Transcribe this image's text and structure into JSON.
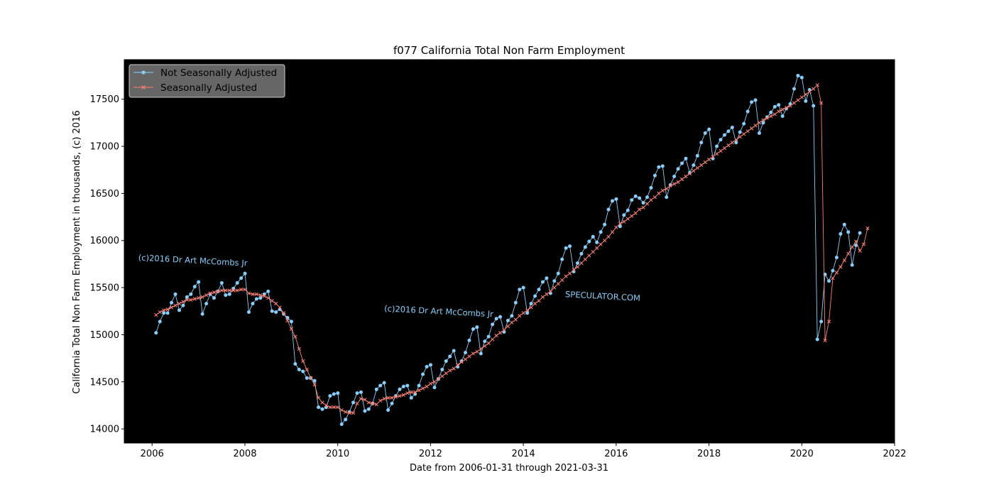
{
  "chart_data": {
    "type": "line",
    "title": "f077 California Total Non Farm Employment",
    "xlabel": "Date from 2006-01-31 through 2021-03-31",
    "ylabel": "California Total Non Farm Employment in thousands, (c) 2016",
    "xlim": [
      2005.4,
      2022
    ],
    "ylim": [
      13850,
      17920
    ],
    "x_ticks": [
      "2006",
      "2008",
      "2010",
      "2012",
      "2014",
      "2016",
      "2018",
      "2020",
      "2022"
    ],
    "y_ticks": [
      "14000",
      "14500",
      "15000",
      "15500",
      "16000",
      "16500",
      "17000",
      "17500"
    ],
    "grid": false,
    "plot_background": "#000000",
    "legend_position": "top-left",
    "x_start": "2006-01-31",
    "x_end": "2021-03-31",
    "series": [
      {
        "name": "Not Seasonally Adjusted",
        "color": "#87cefa",
        "marker": "circle",
        "values": [
          15020,
          15140,
          15230,
          15230,
          15340,
          15430,
          15260,
          15310,
          15400,
          15430,
          15510,
          15560,
          15220,
          15330,
          15430,
          15390,
          15460,
          15550,
          15420,
          15430,
          15490,
          15550,
          15600,
          15650,
          15240,
          15330,
          15380,
          15390,
          15430,
          15460,
          15250,
          15240,
          15270,
          15220,
          15180,
          15140,
          14690,
          14630,
          14610,
          14540,
          14540,
          14510,
          14230,
          14210,
          14230,
          14350,
          14370,
          14380,
          14050,
          14100,
          14180,
          14280,
          14380,
          14390,
          14190,
          14210,
          14270,
          14420,
          14460,
          14490,
          14200,
          14270,
          14350,
          14420,
          14450,
          14460,
          14330,
          14370,
          14460,
          14580,
          14660,
          14680,
          14440,
          14530,
          14630,
          14720,
          14770,
          14830,
          14660,
          14720,
          14810,
          14940,
          15060,
          15080,
          14800,
          14930,
          14980,
          15110,
          15170,
          15190,
          15030,
          15150,
          15200,
          15340,
          15480,
          15500,
          15230,
          15330,
          15410,
          15480,
          15560,
          15600,
          15440,
          15570,
          15650,
          15800,
          15920,
          15940,
          15670,
          15760,
          15860,
          15930,
          15990,
          16040,
          15980,
          16090,
          16170,
          16330,
          16420,
          16440,
          16150,
          16270,
          16320,
          16430,
          16470,
          16450,
          16400,
          16460,
          16560,
          16690,
          16780,
          16790,
          16460,
          16590,
          16680,
          16760,
          16820,
          16870,
          16720,
          16800,
          16900,
          17040,
          17140,
          17180,
          16870,
          17000,
          17070,
          17120,
          17160,
          17200,
          17040,
          17150,
          17240,
          17370,
          17470,
          17490,
          17140,
          17250,
          17310,
          17360,
          17420,
          17440,
          17320,
          17400,
          17450,
          17610,
          17750,
          17730,
          17480,
          17600,
          17430,
          14950,
          15140,
          15640,
          15570,
          15680,
          15820,
          16070,
          16170,
          16090,
          15740,
          15950,
          16080
        ]
      },
      {
        "name": "Seasonally Adjusted",
        "color": "#fa8072",
        "marker": "x",
        "values": [
          15210,
          15240,
          15260,
          15270,
          15290,
          15310,
          15330,
          15350,
          15370,
          15370,
          15380,
          15390,
          15400,
          15420,
          15440,
          15450,
          15460,
          15470,
          15470,
          15470,
          15470,
          15470,
          15480,
          15480,
          15440,
          15430,
          15430,
          15420,
          15410,
          15390,
          15360,
          15330,
          15290,
          15230,
          15150,
          15060,
          14980,
          14850,
          14720,
          14630,
          14540,
          14470,
          14330,
          14280,
          14250,
          14230,
          14230,
          14230,
          14200,
          14180,
          14170,
          14170,
          14270,
          14320,
          14310,
          14280,
          14270,
          14260,
          14300,
          14320,
          14330,
          14330,
          14340,
          14350,
          14360,
          14380,
          14390,
          14390,
          14410,
          14430,
          14450,
          14480,
          14500,
          14530,
          14560,
          14590,
          14620,
          14640,
          14680,
          14710,
          14740,
          14770,
          14800,
          14820,
          14850,
          14880,
          14910,
          14950,
          14990,
          15020,
          15050,
          15090,
          15130,
          15160,
          15200,
          15230,
          15260,
          15290,
          15330,
          15360,
          15400,
          15430,
          15460,
          15500,
          15540,
          15580,
          15620,
          15650,
          15690,
          15720,
          15760,
          15800,
          15840,
          15880,
          15920,
          15960,
          16000,
          16040,
          16090,
          16140,
          16180,
          16200,
          16230,
          16260,
          16290,
          16330,
          16350,
          16390,
          16430,
          16460,
          16500,
          16530,
          16550,
          16580,
          16600,
          16620,
          16650,
          16680,
          16710,
          16740,
          16770,
          16800,
          16830,
          16860,
          16890,
          16920,
          16950,
          16980,
          17010,
          17040,
          17070,
          17100,
          17130,
          17160,
          17190,
          17220,
          17250,
          17280,
          17300,
          17320,
          17340,
          17370,
          17390,
          17410,
          17430,
          17460,
          17490,
          17520,
          17550,
          17580,
          17610,
          17650,
          17460,
          14940,
          15140,
          15600,
          15660,
          15720,
          15790,
          15860,
          15930,
          15990,
          15890,
          15960,
          16130
        ]
      }
    ],
    "annotations": [
      {
        "text": "(c)2016 Dr Art McCombs Jr",
        "x": 2005.7,
        "y": 15790,
        "angle": 3
      },
      {
        "text": "(c)2016 Dr Art McCombs Jr",
        "x": 2011.0,
        "y": 15250,
        "angle": 3
      },
      {
        "text": "SPECULATOR.COM",
        "x": 2014.9,
        "y": 15400,
        "angle": 3
      }
    ]
  }
}
